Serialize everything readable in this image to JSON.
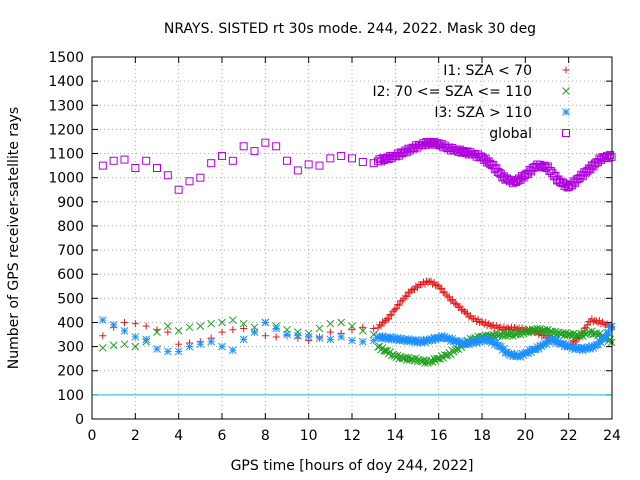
{
  "chart_data": {
    "type": "scatter",
    "title": "NRAYS. SISTED rt 30s mode. 244, 2022. Mask 30 deg",
    "xlabel": "GPS time [hours of doy 244, 2022]",
    "ylabel": "Number of GPS receiver-satellite rays",
    "xlim": [
      0,
      24
    ],
    "ylim": [
      0,
      1500
    ],
    "xticks": [
      0,
      2,
      4,
      6,
      8,
      10,
      12,
      14,
      16,
      18,
      20,
      22,
      24
    ],
    "yticks": [
      0,
      100,
      200,
      300,
      400,
      500,
      600,
      700,
      800,
      900,
      1000,
      1100,
      1200,
      1300,
      1400,
      1500
    ],
    "grid": true,
    "legend_position": "top-right",
    "reference_line": {
      "y": 100,
      "color": "#00c8c8"
    },
    "series": [
      {
        "name": "I1: SZA < 70",
        "marker": "plus",
        "color": "#e41a1c",
        "sparse": {
          "x": [
            0.5,
            1,
            1.5,
            2,
            2.5,
            3,
            3.5,
            4,
            4.5,
            5,
            5.5,
            6,
            6.5,
            7,
            7.5,
            8,
            8.5,
            9,
            9.5,
            10,
            10.5,
            11,
            11.5,
            12,
            12.5,
            13
          ],
          "y": [
            345,
            380,
            400,
            395,
            385,
            370,
            360,
            310,
            315,
            320,
            335,
            360,
            370,
            375,
            360,
            345,
            340,
            345,
            335,
            325,
            340,
            360,
            355,
            370,
            380,
            375
          ]
        },
        "dense": {
          "x": [
            13.2,
            13.7,
            14.2,
            14.7,
            15.2,
            15.6,
            16.0,
            16.5,
            17.0,
            17.5,
            18.0,
            18.5,
            19.0,
            19.5,
            20.0,
            20.5,
            21.0,
            21.5,
            22.0,
            22.5,
            23.0,
            23.5,
            24.0
          ],
          "y": [
            380,
            420,
            480,
            530,
            560,
            570,
            550,
            500,
            460,
            420,
            400,
            385,
            375,
            375,
            370,
            360,
            340,
            320,
            300,
            340,
            410,
            400,
            380
          ]
        }
      },
      {
        "name": "I2: 70 <= SZA <= 110",
        "marker": "cross",
        "color": "#1fa01f",
        "sparse": {
          "x": [
            0.5,
            1,
            1.5,
            2,
            2.5,
            3,
            3.5,
            4,
            4.5,
            5,
            5.5,
            6,
            6.5,
            7,
            7.5,
            8,
            8.5,
            9,
            9.5,
            10,
            10.5,
            11,
            11.5,
            12,
            12.5,
            13
          ],
          "y": [
            295,
            305,
            310,
            300,
            320,
            360,
            385,
            365,
            380,
            385,
            395,
            400,
            410,
            395,
            380,
            400,
            385,
            370,
            360,
            355,
            375,
            395,
            400,
            385,
            365,
            350
          ]
        },
        "dense": {
          "x": [
            13.2,
            13.6,
            14.0,
            14.5,
            15.0,
            15.5,
            16.0,
            16.5,
            17.0,
            17.5,
            18.0,
            18.5,
            19.0,
            19.5,
            20.0,
            20.5,
            21.0,
            21.5,
            22.0,
            22.5,
            23.0,
            23.5,
            24.0
          ],
          "y": [
            300,
            280,
            260,
            250,
            245,
            235,
            250,
            270,
            300,
            330,
            340,
            345,
            350,
            350,
            360,
            370,
            365,
            355,
            350,
            345,
            360,
            345,
            320
          ]
        }
      },
      {
        "name": "I3: SZA > 110",
        "marker": "star",
        "color": "#1e90ff",
        "sparse": {
          "x": [
            0.5,
            1,
            1.5,
            2,
            2.5,
            3,
            3.5,
            4,
            4.5,
            5,
            5.5,
            6,
            6.5,
            7,
            7.5,
            8,
            8.5,
            9,
            9.5,
            10,
            10.5,
            11,
            11.5,
            12,
            12.5,
            13
          ],
          "y": [
            410,
            390,
            365,
            340,
            330,
            290,
            280,
            280,
            300,
            310,
            320,
            300,
            285,
            330,
            360,
            400,
            375,
            350,
            345,
            340,
            335,
            330,
            340,
            325,
            320,
            325
          ]
        },
        "dense": {
          "x": [
            13.2,
            13.7,
            14.2,
            14.7,
            15.2,
            15.7,
            16.2,
            16.7,
            17.2,
            17.7,
            18.2,
            18.7,
            19.2,
            19.7,
            20.2,
            20.7,
            21.2,
            21.7,
            22.2,
            22.7,
            23.2,
            23.7,
            24.0
          ],
          "y": [
            340,
            335,
            330,
            325,
            320,
            330,
            340,
            325,
            310,
            320,
            330,
            310,
            270,
            260,
            280,
            300,
            330,
            310,
            295,
            290,
            300,
            340,
            390
          ]
        }
      },
      {
        "name": "global",
        "marker": "square",
        "color": "#b000e0",
        "sparse": {
          "x": [
            0.5,
            1,
            1.5,
            2,
            2.5,
            3,
            3.5,
            4,
            4.5,
            5,
            5.5,
            6,
            6.5,
            7,
            7.5,
            8,
            8.5,
            9,
            9.5,
            10,
            10.5,
            11,
            11.5,
            12,
            12.5,
            13
          ],
          "y": [
            1050,
            1070,
            1075,
            1040,
            1070,
            1040,
            1010,
            950,
            985,
            1000,
            1060,
            1090,
            1070,
            1130,
            1110,
            1145,
            1130,
            1070,
            1030,
            1055,
            1050,
            1080,
            1090,
            1080,
            1065,
            1060
          ]
        },
        "dense": {
          "x": [
            13.2,
            13.6,
            14.0,
            14.5,
            15.0,
            15.5,
            16.0,
            16.5,
            17.0,
            17.5,
            18.0,
            18.5,
            19.0,
            19.5,
            20.0,
            20.5,
            21.0,
            21.5,
            22.0,
            22.5,
            23.0,
            23.5,
            24.0
          ],
          "y": [
            1070,
            1080,
            1090,
            1110,
            1130,
            1145,
            1140,
            1120,
            1110,
            1100,
            1085,
            1050,
            1000,
            980,
            1010,
            1050,
            1045,
            990,
            960,
            1000,
            1040,
            1080,
            1090
          ]
        }
      }
    ]
  }
}
